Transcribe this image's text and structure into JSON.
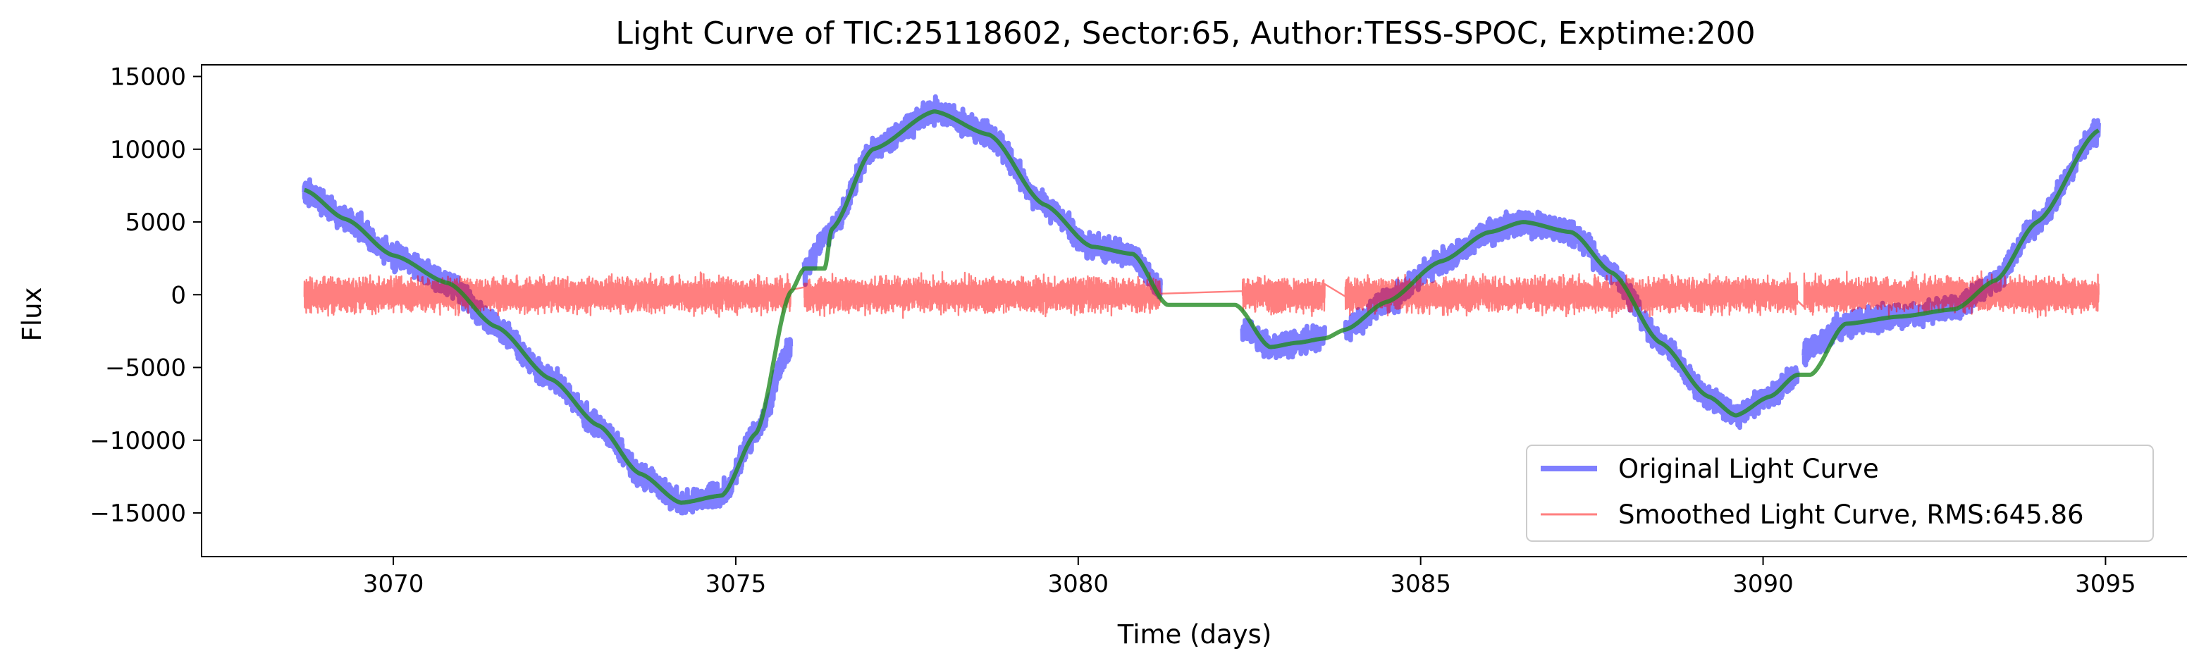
{
  "chart_data": {
    "type": "line",
    "title": "Light Curve of TIC:25118602, Sector:65, Author:TESS-SPOC, Exptime:200",
    "xlabel": "Time (days)",
    "ylabel": "Flux",
    "xlim": [
      3067.2,
      3096.2
    ],
    "ylim": [
      -18000,
      15800
    ],
    "x_ticks": [
      3070,
      3075,
      3080,
      3085,
      3090,
      3095
    ],
    "y_ticks": [
      -15000,
      -10000,
      -5000,
      0,
      5000,
      10000,
      15000
    ],
    "x_tick_labels": [
      "3070",
      "3075",
      "3080",
      "3085",
      "3090",
      "3095"
    ],
    "y_tick_labels": [
      "−15000",
      "−10000",
      "−5000",
      "0",
      "5000",
      "10000",
      "15000"
    ],
    "grid": false,
    "legend_position": "lower-right",
    "series": [
      {
        "name": "Original Light Curve",
        "color": "#0000ff",
        "opacity": 0.5,
        "style": "noisy-thick",
        "segments": [
          [
            [
              3068.7,
              7200
            ],
            [
              3069.3,
              5200
            ],
            [
              3070.0,
              2700
            ],
            [
              3070.8,
              800
            ],
            [
              3071.5,
              -2200
            ],
            [
              3072.3,
              -5800
            ],
            [
              3073.0,
              -9000
            ],
            [
              3073.6,
              -12300
            ],
            [
              3074.2,
              -14300
            ],
            [
              3074.8,
              -13800
            ],
            [
              3075.3,
              -9500
            ],
            [
              3075.8,
              -3500
            ]
          ],
          [
            [
              3076.0,
              1800
            ],
            [
              3076.4,
              4500
            ],
            [
              3077.0,
              10000
            ],
            [
              3077.9,
              12600
            ],
            [
              3078.7,
              11000
            ],
            [
              3079.5,
              6200
            ],
            [
              3080.2,
              3300
            ],
            [
              3080.8,
              2800
            ],
            [
              3081.2,
              400
            ]
          ],
          [
            [
              3082.4,
              -2400
            ],
            [
              3082.8,
              -3600
            ],
            [
              3083.2,
              -3300
            ],
            [
              3083.6,
              -2800
            ]
          ],
          [
            [
              3083.9,
              -2400
            ],
            [
              3084.5,
              -500
            ],
            [
              3085.3,
              2300
            ],
            [
              3086.0,
              4300
            ],
            [
              3086.5,
              5000
            ],
            [
              3087.2,
              4300
            ],
            [
              3087.8,
              1500
            ],
            [
              3088.5,
              -3300
            ],
            [
              3089.2,
              -7000
            ],
            [
              3089.6,
              -8300
            ],
            [
              3090.1,
              -7000
            ],
            [
              3090.5,
              -5500
            ]
          ],
          [
            [
              3090.6,
              -4000
            ],
            [
              3091.2,
              -2000
            ],
            [
              3092.0,
              -1500
            ],
            [
              3092.8,
              -1000
            ],
            [
              3093.4,
              1000
            ],
            [
              3094.0,
              5000
            ],
            [
              3094.9,
              11300
            ]
          ]
        ]
      },
      {
        "name": "Smoothed Light Curve, RMS:645.86",
        "color": "#ff0000",
        "opacity": 0.5,
        "style": "thin-noisy-residual",
        "segments": [
          [
            [
              3068.7,
              0
            ],
            [
              3075.8,
              0
            ]
          ],
          [
            [
              3076.0,
              0
            ],
            [
              3081.2,
              0
            ]
          ],
          [
            [
              3082.4,
              0
            ],
            [
              3083.6,
              0
            ]
          ],
          [
            [
              3083.9,
              0
            ],
            [
              3090.5,
              0
            ]
          ],
          [
            [
              3090.6,
              0
            ],
            [
              3094.9,
              0
            ]
          ]
        ]
      },
      {
        "name": "",
        "color": "#228b22",
        "opacity": 0.8,
        "style": "smooth-trend",
        "points": [
          [
            3068.7,
            7200
          ],
          [
            3069.3,
            5200
          ],
          [
            3070.0,
            2700
          ],
          [
            3070.8,
            800
          ],
          [
            3071.5,
            -2200
          ],
          [
            3072.3,
            -5800
          ],
          [
            3073.0,
            -9000
          ],
          [
            3073.6,
            -12300
          ],
          [
            3074.2,
            -14300
          ],
          [
            3074.8,
            -13800
          ],
          [
            3075.3,
            -9500
          ],
          [
            3075.8,
            200
          ],
          [
            3076.0,
            1800
          ],
          [
            3076.3,
            1800
          ],
          [
            3076.4,
            4500
          ],
          [
            3077.0,
            10000
          ],
          [
            3077.9,
            12600
          ],
          [
            3078.7,
            11000
          ],
          [
            3079.5,
            6200
          ],
          [
            3080.2,
            3300
          ],
          [
            3080.8,
            2800
          ],
          [
            3081.3,
            -700
          ],
          [
            3082.3,
            -700
          ],
          [
            3082.8,
            -3600
          ],
          [
            3083.2,
            -3300
          ],
          [
            3083.6,
            -3000
          ],
          [
            3083.9,
            -2400
          ],
          [
            3084.5,
            -500
          ],
          [
            3085.3,
            2300
          ],
          [
            3086.0,
            4300
          ],
          [
            3086.5,
            5000
          ],
          [
            3087.2,
            4300
          ],
          [
            3087.8,
            1500
          ],
          [
            3088.5,
            -3300
          ],
          [
            3089.2,
            -7000
          ],
          [
            3089.6,
            -8300
          ],
          [
            3090.1,
            -7000
          ],
          [
            3090.5,
            -5500
          ],
          [
            3090.7,
            -5500
          ],
          [
            3091.2,
            -2000
          ],
          [
            3092.0,
            -1500
          ],
          [
            3092.8,
            -1000
          ],
          [
            3093.4,
            1000
          ],
          [
            3094.0,
            5000
          ],
          [
            3094.9,
            11300
          ]
        ]
      }
    ]
  }
}
